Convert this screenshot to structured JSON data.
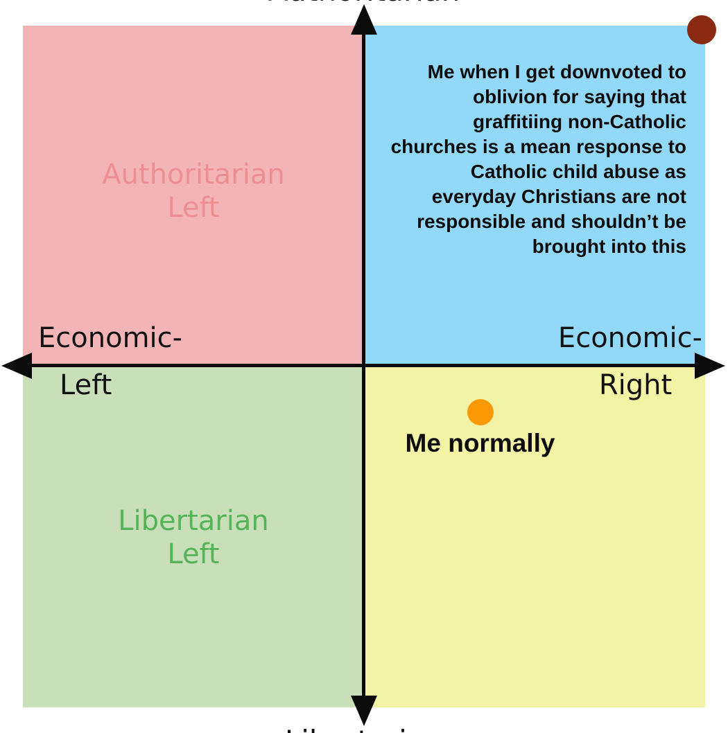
{
  "compass": {
    "axis_labels": {
      "top": "Authoritarian",
      "bottom": "Libertarian",
      "left": [
        "Economic-",
        "Left"
      ],
      "right": [
        "Economic-",
        "Right"
      ]
    },
    "quadrants": {
      "authoritarian_left": {
        "label_line1": "Authoritarian",
        "label_line2": "Left",
        "bg_color": "#f3b4b5",
        "label_color": "#ee8e92"
      },
      "authoritarian_right": {
        "bg_color": "#92d9f9"
      },
      "libertarian_left": {
        "label_line1": "Libertarian",
        "label_line2": "Left",
        "bg_color": "#c9dfba",
        "label_color": "#55b457"
      },
      "libertarian_right": {
        "bg_color": "#f2f3a5"
      }
    },
    "axis_color": "#0b0b0b"
  },
  "annotations": {
    "auth_right": {
      "lines": [
        "Me when I get downvoted to",
        "oblivion for saying that",
        "graffitiing non-Catholic",
        "churches is a mean response to",
        "Catholic child abuse as",
        "everyday Christians are not",
        "responsible and shouldn’t be",
        "brought into this"
      ],
      "dot_color": "#8b2a12",
      "dot_position": "extreme top-right corner"
    },
    "lib_right": {
      "label": "Me normally",
      "dot_color": "#fa9905",
      "dot_position": "upper-middle of libertarian-right quadrant"
    }
  }
}
